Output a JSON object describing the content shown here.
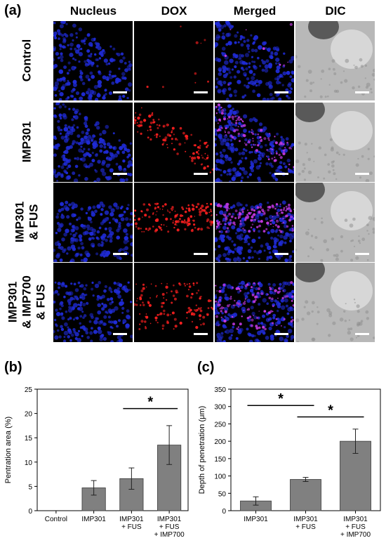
{
  "panel_a": {
    "letter": "(a)",
    "columns": [
      "Nucleus",
      "DOX",
      "Merged",
      "DIC"
    ],
    "rows": [
      {
        "label_lines": [
          "Control"
        ],
        "dox": 0.05
      },
      {
        "label_lines": [
          "IMP301"
        ],
        "dox": 0.6
      },
      {
        "label_lines": [
          "IMP301",
          "& FUS"
        ],
        "dox": 0.8
      },
      {
        "label_lines": [
          "IMP301",
          "& IMP700",
          "& FUS"
        ],
        "dox": 0.75
      }
    ],
    "colors": {
      "nucleus": "#1f2bd6",
      "dox": "#ff2020",
      "merged": "#c038e0"
    }
  },
  "chart_data": [
    {
      "panel": "(b)",
      "type": "bar",
      "categories": [
        [
          "Control"
        ],
        [
          "IMP301"
        ],
        [
          "IMP301",
          "+ FUS"
        ],
        [
          "IMP301",
          "+ FUS",
          "+ IMP700"
        ]
      ],
      "values": [
        0,
        4.7,
        6.6,
        13.5
      ],
      "errors": [
        0,
        1.5,
        2.2,
        4.0
      ],
      "ylabel": "Pentration area (%)",
      "ylim": [
        0,
        25
      ],
      "yticks": [
        "0",
        "5",
        "10",
        "15",
        "20",
        "25"
      ],
      "significance": [
        {
          "from": 2,
          "to": 3,
          "label": "*"
        }
      ],
      "bar_color": "#808080"
    },
    {
      "panel": "(c)",
      "type": "bar",
      "categories": [
        [
          "IMP301"
        ],
        [
          "IMP301",
          "+ FUS"
        ],
        [
          "IMP301",
          "+ FUS",
          "+ IMP700"
        ]
      ],
      "values": [
        28,
        90,
        200
      ],
      "errors": [
        12,
        6,
        35
      ],
      "ylabel": "Depth of penetration (μm)",
      "ylim": [
        0,
        350
      ],
      "yticks": [
        "0",
        "50",
        "100",
        "150",
        "200",
        "250",
        "300",
        "350"
      ],
      "significance": [
        {
          "from": 0,
          "to": 1,
          "label": "*"
        },
        {
          "from": 1,
          "to": 2,
          "label": "*"
        }
      ],
      "bar_color": "#808080"
    }
  ]
}
